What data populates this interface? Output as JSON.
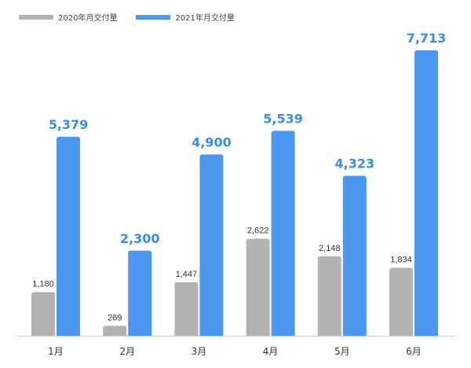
{
  "colors": {
    "series2020": "#b3b3b3",
    "series2021": "#4c98f0",
    "axis": "#cfcfcf",
    "label2020": "#333333",
    "label2021": "#3b8ee8",
    "tick": "#333333"
  },
  "chart_data": {
    "type": "bar",
    "title": "",
    "xlabel": "",
    "ylabel": "",
    "categories": [
      "1月",
      "2月",
      "3月",
      "4月",
      "5月",
      "6月"
    ],
    "series": [
      {
        "name": "2020年月交付量",
        "values": [
          1180,
          269,
          1447,
          2622,
          2148,
          1834
        ],
        "labels": [
          "1,180",
          "269",
          "1,447",
          "2,622",
          "2,148",
          "1,834"
        ]
      },
      {
        "name": "2021年月交付量",
        "values": [
          5379,
          2300,
          4900,
          5539,
          4323,
          7713
        ],
        "labels": [
          "5,379",
          "2,300",
          "4,900",
          "5,539",
          "4,323",
          "7,713"
        ]
      }
    ],
    "ylim": [
      0,
      8200
    ],
    "grid": false,
    "legend": "top-left"
  }
}
